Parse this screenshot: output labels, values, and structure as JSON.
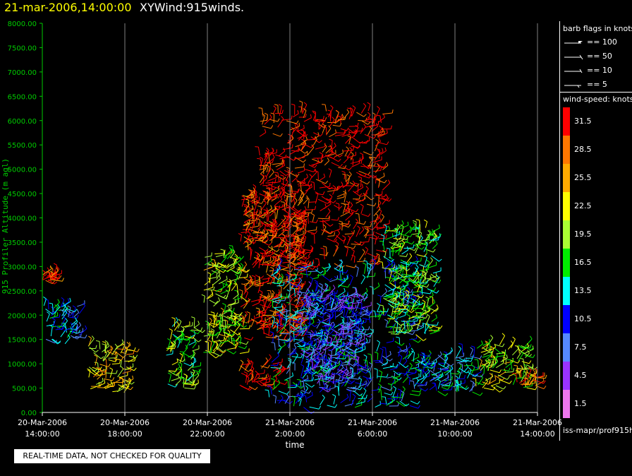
{
  "header": {
    "date_label": "21-mar-2006,14:00:00",
    "product": "XYWind:915winds."
  },
  "notice": "REAL-TIME DATA, NOT CHECKED FOR QUALITY",
  "legend": {
    "flags_title": "barb flags in knots",
    "flags": [
      {
        "icon": "pennant-flag-icon",
        "label": "== 100"
      },
      {
        "icon": "full-barb-flag-icon",
        "label": "== 50"
      },
      {
        "icon": "long-barb-icon",
        "label": "== 10"
      },
      {
        "icon": "short-barb-icon",
        "label": "== 5"
      }
    ],
    "speed_title": "wind-speed: knots",
    "speed_scale": [
      {
        "label": "31.5",
        "color": "#ff0000"
      },
      {
        "label": "28.5",
        "color": "#ff7700"
      },
      {
        "label": "25.5",
        "color": "#ffaa00"
      },
      {
        "label": "22.5",
        "color": "#ffff00"
      },
      {
        "label": "19.5",
        "color": "#aaff33"
      },
      {
        "label": "16.5",
        "color": "#00ee00"
      },
      {
        "label": "13.5",
        "color": "#00ffff"
      },
      {
        "label": "10.5",
        "color": "#0000ff"
      },
      {
        "label": "7.5",
        "color": "#5588ff"
      },
      {
        "label": "4.5",
        "color": "#9933ff"
      },
      {
        "label": "1.5",
        "color": "#ee77ee"
      }
    ],
    "footer": "iss-mapr/prof915h"
  },
  "chart_data": {
    "type": "scatter",
    "subtype": "wind-barb time-height plot",
    "ylabel": "915 Profiler Altitude (m agl)",
    "xlabel": "time",
    "ylim": [
      0,
      8000
    ],
    "xlim_hours": [
      0,
      24
    ],
    "y_ticks": [
      "0.00",
      "500.00",
      "1000.00",
      "1500.00",
      "2000.00",
      "2500.00",
      "3000.00",
      "3500.00",
      "4000.00",
      "4500.00",
      "5000.00",
      "5500.00",
      "6000.00",
      "6500.00",
      "7000.00",
      "7500.00",
      "8000.00"
    ],
    "x_ticks": [
      {
        "date": "20-Mar-2006",
        "time": "14:00:00"
      },
      {
        "date": "20-Mar-2006",
        "time": "18:00:00"
      },
      {
        "date": "20-Mar-2006",
        "time": "22:00:00"
      },
      {
        "date": "21-Mar-2006",
        "time": "2:00:00"
      },
      {
        "date": "21-Mar-2006",
        "time": "6:00:00"
      },
      {
        "date": "21-Mar-2006",
        "time": "10:00:00"
      },
      {
        "date": "21-Mar-2006",
        "time": "14:00:00"
      }
    ],
    "grid": "vertical lines at ticks",
    "axis_color": "#00cc00",
    "clusters": [
      {
        "t_start": 0.0,
        "t_end": 1.8,
        "alt_min": 1400,
        "alt_max": 2200,
        "speed": 12
      },
      {
        "t_start": 0.0,
        "t_end": 0.6,
        "alt_min": 2700,
        "alt_max": 2850,
        "speed": 31
      },
      {
        "t_start": 2.2,
        "t_end": 4.2,
        "alt_min": 400,
        "alt_max": 1400,
        "speed": 23
      },
      {
        "t_start": 6.0,
        "t_end": 7.4,
        "alt_min": 500,
        "alt_max": 1800,
        "speed": 18
      },
      {
        "t_start": 7.8,
        "t_end": 9.6,
        "alt_min": 1200,
        "alt_max": 3300,
        "speed": 20
      },
      {
        "t_start": 9.6,
        "t_end": 12.5,
        "alt_min": 1500,
        "alt_max": 4500,
        "speed": 30
      },
      {
        "t_start": 10.5,
        "t_end": 16.5,
        "alt_min": 3000,
        "alt_max": 6200,
        "speed": 32
      },
      {
        "t_start": 9.5,
        "t_end": 11.5,
        "alt_min": 500,
        "alt_max": 1000,
        "speed": 31
      },
      {
        "t_start": 11.0,
        "t_end": 18.0,
        "alt_min": 100,
        "alt_max": 3000,
        "speed": 12
      },
      {
        "t_start": 12.5,
        "t_end": 15.5,
        "alt_min": 500,
        "alt_max": 2500,
        "speed": 8
      },
      {
        "t_start": 16.5,
        "t_end": 19.0,
        "alt_min": 1600,
        "alt_max": 3800,
        "speed": 18
      },
      {
        "t_start": 18.0,
        "t_end": 21.0,
        "alt_min": 400,
        "alt_max": 1200,
        "speed": 12
      },
      {
        "t_start": 21.0,
        "t_end": 23.5,
        "alt_min": 500,
        "alt_max": 1400,
        "speed": 20
      },
      {
        "t_start": 23.0,
        "t_end": 24.0,
        "alt_min": 500,
        "alt_max": 800,
        "speed": 28
      }
    ]
  }
}
